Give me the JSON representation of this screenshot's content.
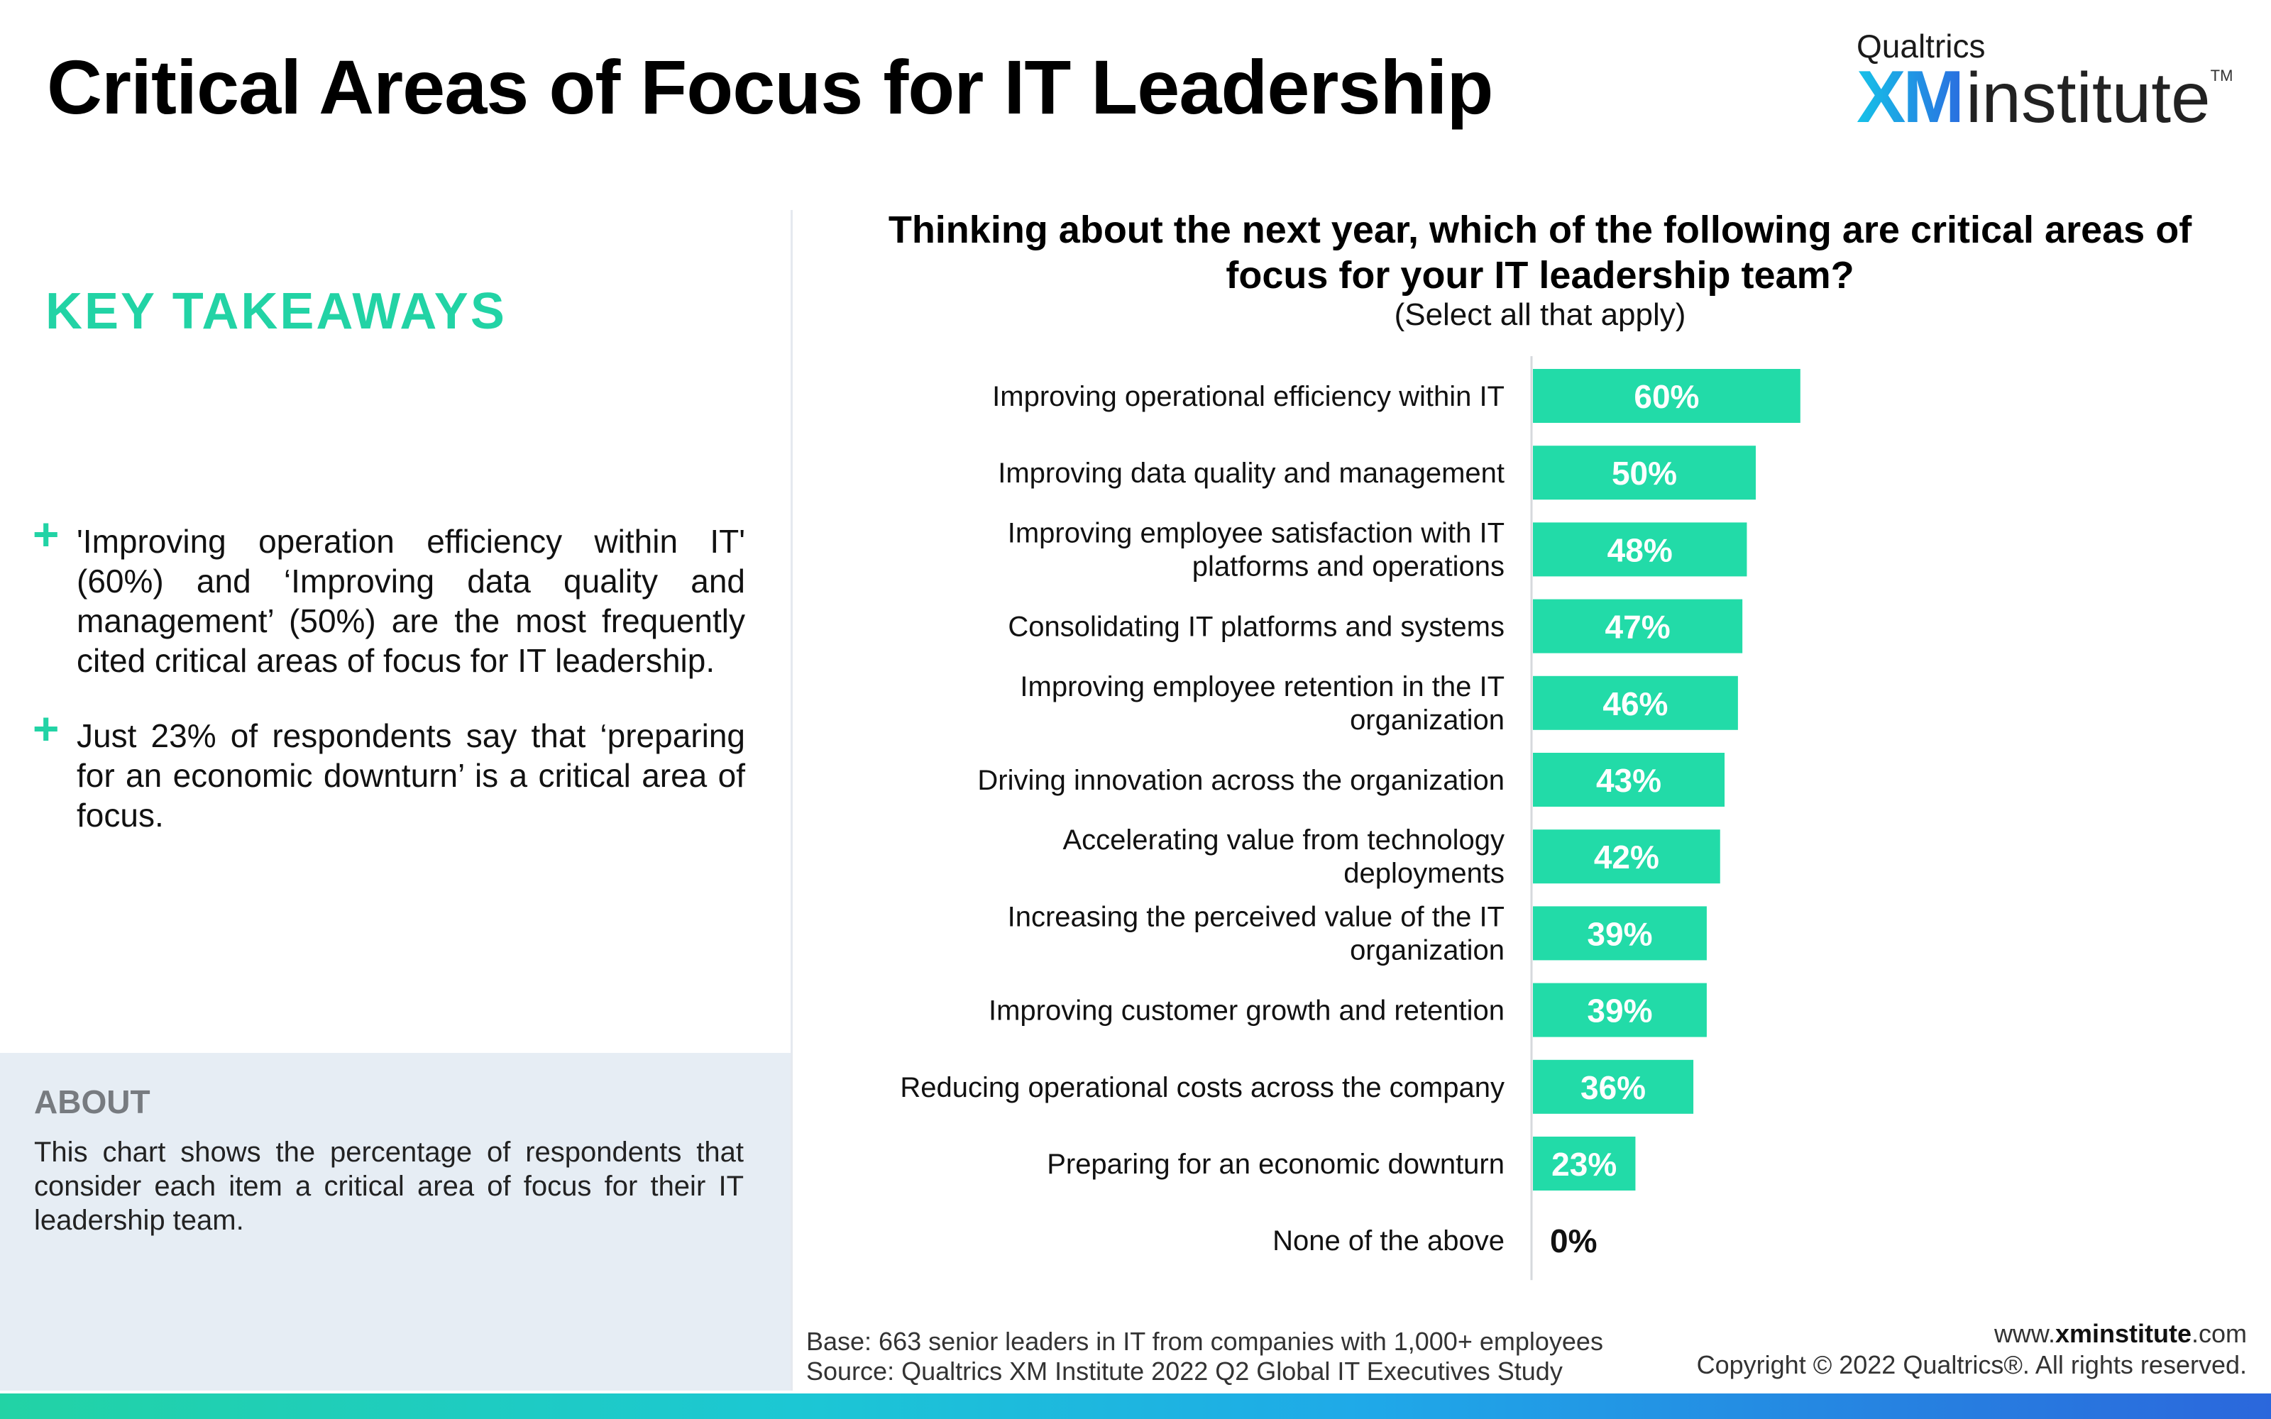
{
  "page": {
    "title": "Critical Areas of Focus for IT Leadership"
  },
  "logo": {
    "brand": "Qualtrics",
    "xm": "XM",
    "name": "institute",
    "tm": "TM"
  },
  "takeaways": {
    "heading": "KEY TAKEAWAYS",
    "marker": "+",
    "items": [
      "'Improving operation efficiency within IT' (60%) and ‘Improving data quality and management’ (50%) are the most frequently cited critical areas of focus for IT leadership.",
      "Just 23% of respondents say that ‘preparing for an economic downturn’ is a critical area of focus."
    ]
  },
  "about": {
    "heading": "ABOUT",
    "text": "This chart shows the percentage of respondents that consider each item a critical area of focus for their IT leadership team."
  },
  "chart": {
    "question": "Thinking about the next year, which of the following are critical areas of focus for your IT leadership team?",
    "subtitle": "(Select all that apply)"
  },
  "chart_data": {
    "type": "bar",
    "orientation": "horizontal",
    "title": "Thinking about the next year, which of the following are critical areas of focus for your IT leadership team?",
    "subtitle": "(Select all that apply)",
    "categories": [
      [
        "Improving operational efficiency within IT"
      ],
      [
        "Improving data quality and management"
      ],
      [
        "Improving employee satisfaction with IT",
        "platforms and operations"
      ],
      [
        "Consolidating IT platforms and systems"
      ],
      [
        "Improving employee retention in the IT",
        "organization"
      ],
      [
        "Driving innovation across the organization"
      ],
      [
        "Accelerating value from technology",
        "deployments"
      ],
      [
        "Increasing the perceived value of the IT",
        "organization"
      ],
      [
        "Improving customer growth and retention"
      ],
      [
        "Reducing operational costs across the company"
      ],
      [
        "Preparing for an economic downturn"
      ],
      [
        "None of the above"
      ]
    ],
    "values": [
      60,
      50,
      48,
      47,
      46,
      43,
      42,
      39,
      39,
      36,
      23,
      0
    ],
    "value_labels": [
      "60%",
      "50%",
      "48%",
      "47%",
      "46%",
      "43%",
      "42%",
      "39%",
      "39%",
      "36%",
      "23%",
      "0%"
    ],
    "xlim": [
      0,
      100
    ],
    "grid": false,
    "legend": "none",
    "bar_color": "#22dba8",
    "label_color_inside": "#ffffff",
    "label_color_outside": "#111111"
  },
  "footer": {
    "base": "Base: 663 senior leaders in IT from companies with 1,000+ employees",
    "source": "Source: Qualtrics XM Institute 2022 Q2 Global IT Executives Study",
    "site_prefix": "www.",
    "site_bold": "xminstitute",
    "site_suffix": ".com",
    "copyright": "Copyright © 2022 Qualtrics®. All rights reserved."
  },
  "colors": {
    "accent": "#22d3a5",
    "about_bg": "#e6edf4",
    "about_heading": "#777b80"
  }
}
